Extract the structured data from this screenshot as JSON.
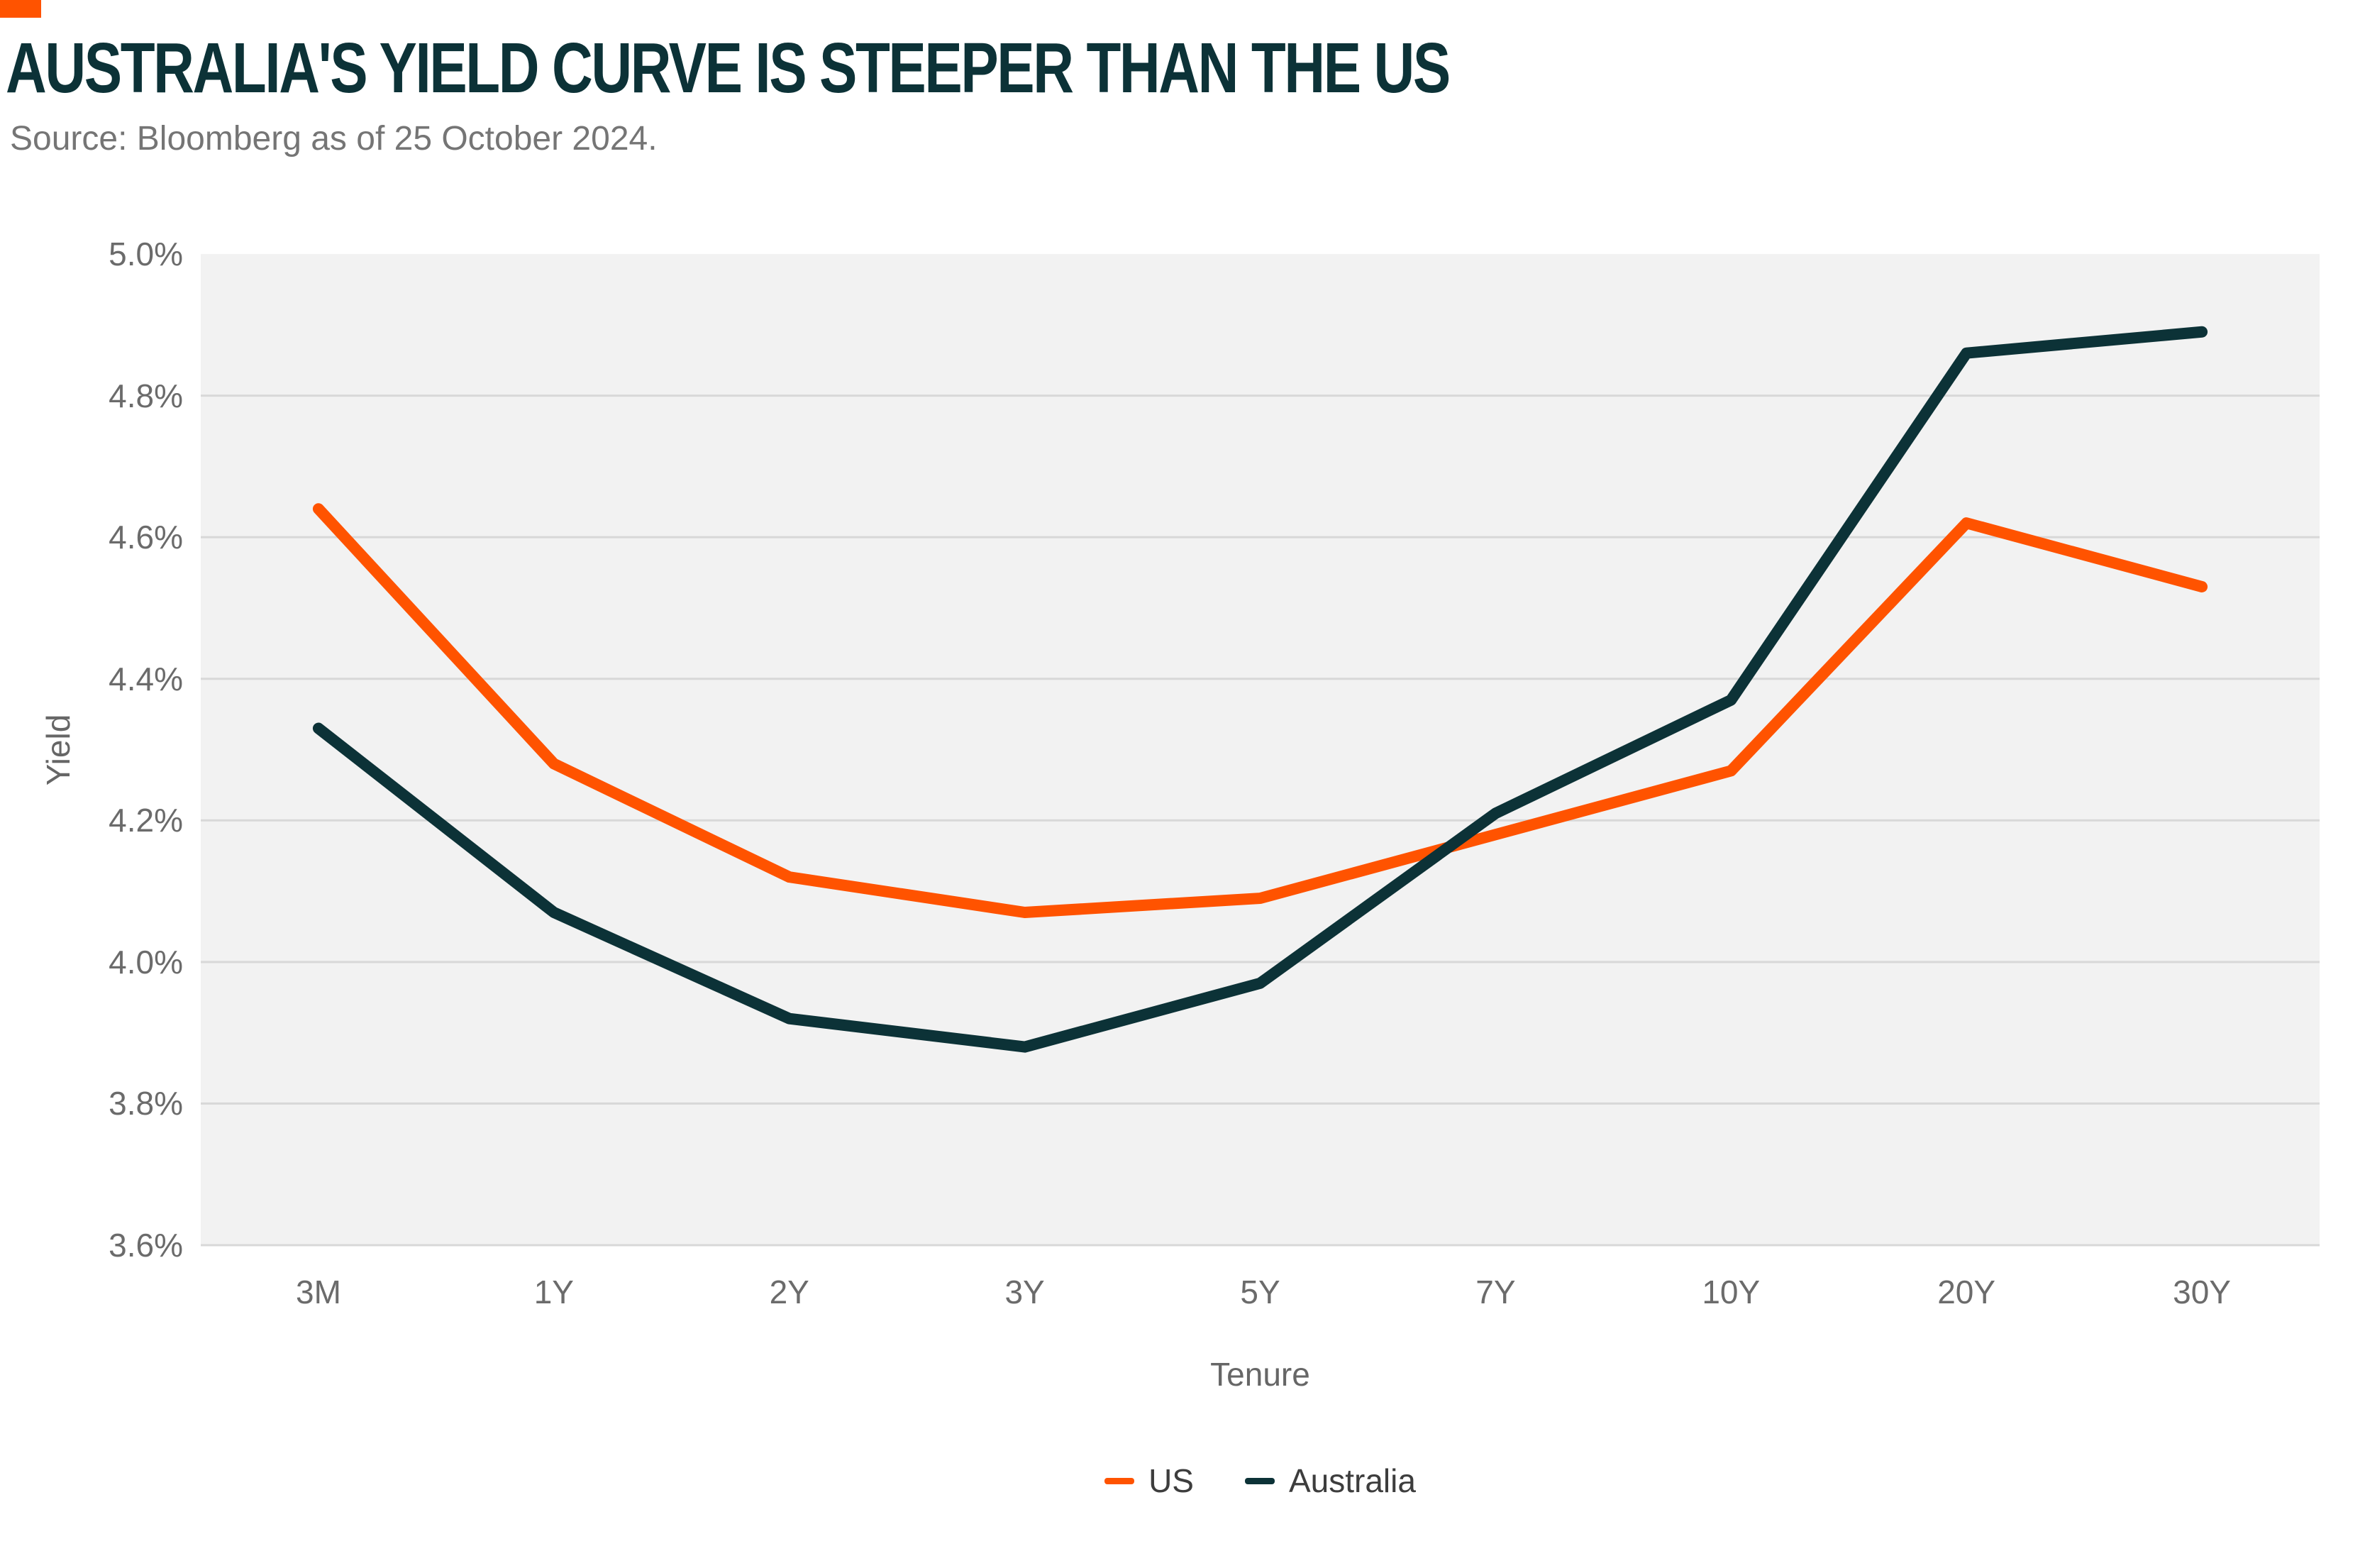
{
  "accent_color": "#FF5300",
  "header": {
    "title": "AUSTRALIA'S YIELD CURVE IS STEEPER THAN THE US",
    "source": "Source: Bloomberg as of 25 October 2024."
  },
  "chart_data": {
    "type": "line",
    "title": "AUSTRALIA'S YIELD CURVE IS STEEPER THAN THE US",
    "subtitle": "Source: Bloomberg as of 25 October 2024.",
    "categories": [
      "3M",
      "1Y",
      "2Y",
      "3Y",
      "5Y",
      "7Y",
      "10Y",
      "20Y",
      "30Y"
    ],
    "series": [
      {
        "name": "US",
        "color": "#FF5300",
        "values": [
          4.64,
          4.28,
          4.12,
          4.07,
          4.09,
          4.18,
          4.27,
          4.62,
          4.53
        ]
      },
      {
        "name": "Australia",
        "color": "#0C3237",
        "values": [
          4.33,
          4.07,
          3.92,
          3.88,
          3.97,
          4.21,
          4.37,
          4.86,
          4.89
        ]
      }
    ],
    "xlabel": "Tenure",
    "ylabel": "Yield",
    "ylim": [
      3.6,
      5.0
    ],
    "ytick_step": 0.2,
    "ytick_labels": [
      "5.0%",
      "4.8%",
      "4.6%",
      "4.4%",
      "4.2%",
      "4.0%",
      "3.8%",
      "3.6%"
    ],
    "grid": "horizontal",
    "gridline_color": "#D8D8D8",
    "plot_bg_color": "#F2F2F2",
    "legend_position": "bottom-center"
  }
}
